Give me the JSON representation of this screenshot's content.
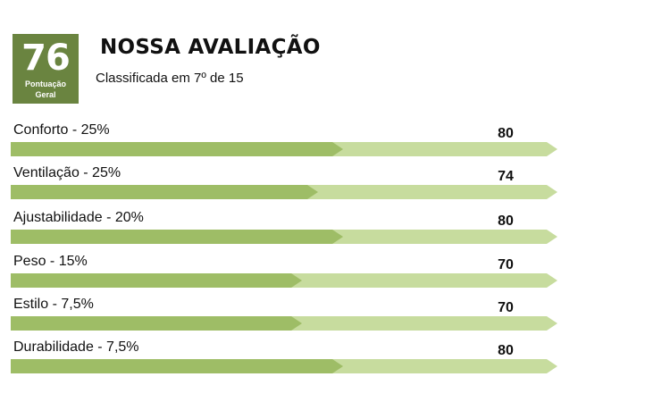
{
  "overall": {
    "score": "76",
    "label_line1": "Pontuação",
    "label_line2": "Geral"
  },
  "header": {
    "title": "NOSSA AVALIAÇÃO",
    "subtitle": "Classificada em 7º de 15"
  },
  "colors": {
    "score_box": "#6a8440",
    "bar_fill": "#9ebd66",
    "bar_track": "#c7dc9e"
  },
  "criteria": [
    {
      "label": "Conforto - 25%",
      "score": "80",
      "fill_fraction": 0.8
    },
    {
      "label": "Ventilação - 25%",
      "score": "74",
      "fill_fraction": 0.74
    },
    {
      "label": "Ajustabilidade - 20%",
      "score": "80",
      "fill_fraction": 0.8
    },
    {
      "label": "Peso - 15%",
      "score": "70",
      "fill_fraction": 0.7
    },
    {
      "label": "Estilo - 7,5%",
      "score": "70",
      "fill_fraction": 0.7
    },
    {
      "label": "Durabilidade - 7,5%",
      "score": "80",
      "fill_fraction": 0.8
    }
  ]
}
